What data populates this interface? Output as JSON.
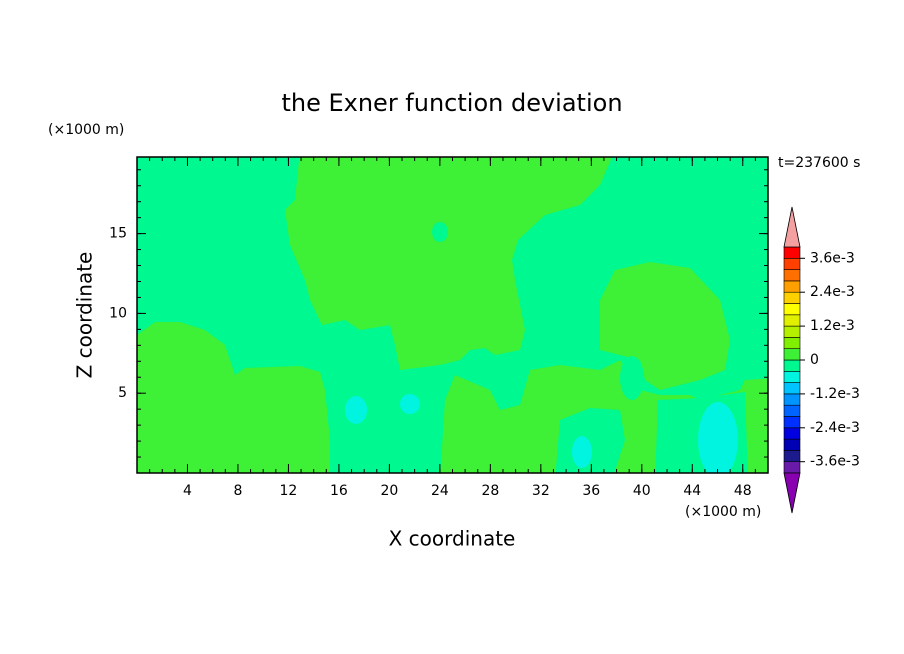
{
  "chart_data": {
    "type": "contour",
    "title": "the Exner function deviation",
    "xlabel": "X coordinate",
    "ylabel": "Z coordinate",
    "x_unit": "(×1000 m)",
    "y_unit": "(×1000 m)",
    "annotation": "t=237600 s",
    "xlim": [
      0,
      50
    ],
    "ylim": [
      0,
      19.8
    ],
    "xticks": [
      4,
      8,
      12,
      16,
      20,
      24,
      28,
      32,
      36,
      40,
      44,
      48
    ],
    "yticks": [
      5,
      10,
      15
    ],
    "colorbar": {
      "levels": [
        -0.004,
        -0.0036,
        -0.0032,
        -0.0028,
        -0.0024,
        -0.002,
        -0.0016,
        -0.0012,
        -0.0008,
        -0.0004,
        0,
        0.0004,
        0.0008,
        0.0012,
        0.0016,
        0.002,
        0.0024,
        0.0028,
        0.0032,
        0.0036,
        0.004
      ],
      "colors": [
        "#6a1aa8",
        "#1c1a8c",
        "#0000b4",
        "#0000e0",
        "#0030ff",
        "#0064ff",
        "#0094ff",
        "#00c4ff",
        "#00f4e0",
        "#00f890",
        "#3ef036",
        "#80f000",
        "#b4f000",
        "#e0f000",
        "#ffff00",
        "#ffd000",
        "#ffa000",
        "#ff7000",
        "#ff4000",
        "#ff0000"
      ],
      "under_color": "#8800b0",
      "over_color": "#f4a0a0",
      "ticks": [
        {
          "value": -0.0036,
          "label": "-3.6e-3"
        },
        {
          "value": -0.0024,
          "label": "-2.4e-3"
        },
        {
          "value": -0.0012,
          "label": "-1.2e-3"
        },
        0,
        {
          "value": 0.0012,
          "label": "1.2e-3"
        },
        {
          "value": 0.0024,
          "label": "2.4e-3"
        },
        {
          "value": 0.0036,
          "label": "3.6e-3"
        }
      ]
    }
  }
}
